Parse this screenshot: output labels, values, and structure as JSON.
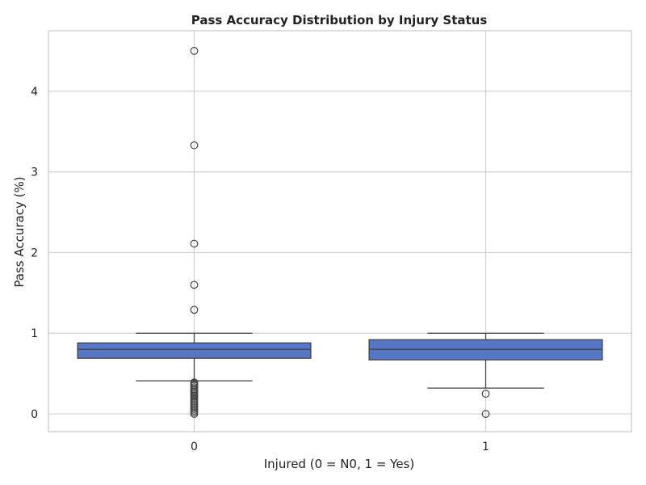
{
  "chart_data": {
    "type": "box",
    "title": "Pass Accuracy Distribution by Injury Status",
    "xlabel": "Injured (0 = N0, 1 = Yes)",
    "ylabel": "Pass Accuracy (%)",
    "categories": [
      "0",
      "1"
    ],
    "yticks": [
      "0",
      "1",
      "2",
      "3",
      "4"
    ],
    "ylim": [
      -0.22,
      4.75
    ],
    "grid": true,
    "boxes": [
      {
        "category": "0",
        "whisker_low": 0.41,
        "q1": 0.69,
        "median": 0.8,
        "q3": 0.88,
        "whisker_high": 1.0,
        "outliers": [
          4.5,
          3.33,
          2.11,
          1.6,
          1.29,
          0.39,
          0.38,
          0.36,
          0.35,
          0.33,
          0.31,
          0.3,
          0.28,
          0.27,
          0.25,
          0.23,
          0.22,
          0.2,
          0.18,
          0.16,
          0.14,
          0.12,
          0.1,
          0.08,
          0.06,
          0.04,
          0.02,
          0.0
        ]
      },
      {
        "category": "1",
        "whisker_low": 0.32,
        "q1": 0.67,
        "median": 0.8,
        "q3": 0.92,
        "whisker_high": 1.0,
        "outliers": [
          0.25,
          0.0
        ]
      }
    ],
    "colors": {
      "box_fill": "#5577c5",
      "line": "#444444",
      "grid": "#d0d0d0",
      "frame": "#cccccc"
    }
  }
}
